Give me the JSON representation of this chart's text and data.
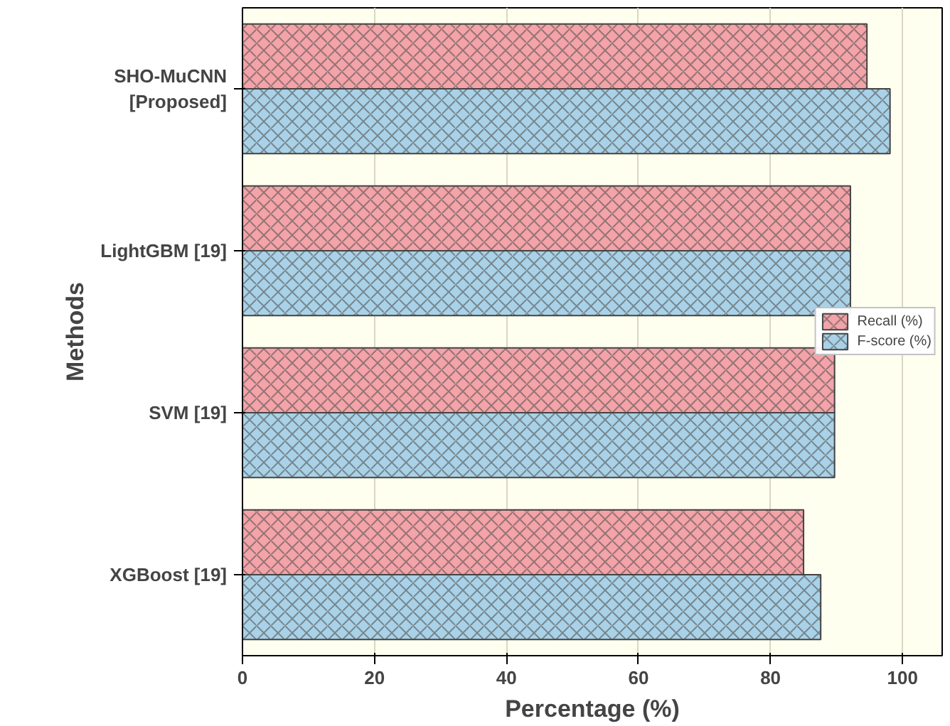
{
  "chart_data": {
    "type": "bar",
    "orientation": "horizontal",
    "xlabel": "Percentage (%)",
    "ylabel": "Methods",
    "categories": [
      "SHO-MuCNN\n[Proposed]",
      "LightGBM [19]",
      "SVM [19]",
      "XGBoost [19]"
    ],
    "series": [
      {
        "name": "Recall (%)",
        "color": "#f4a3a8",
        "values": [
          94.6,
          92.1,
          89.7,
          85.0
        ]
      },
      {
        "name": "F-score (%)",
        "color": "#a9d2e8",
        "values": [
          98.1,
          92.1,
          89.7,
          87.6
        ]
      }
    ],
    "xlim": [
      0,
      106
    ],
    "xticks": [
      0,
      20,
      40,
      60,
      80,
      100
    ],
    "grid": true,
    "legend": "right"
  }
}
